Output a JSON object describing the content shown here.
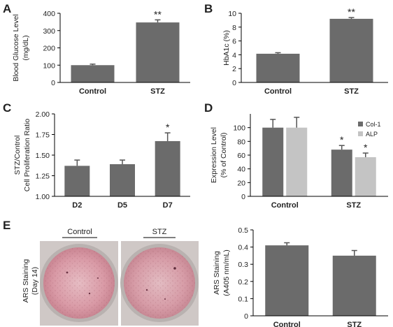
{
  "colors": {
    "bar_dark": "#6b6b6b",
    "bar_light": "#c4c4c4",
    "axis": "#000000",
    "text": "#222222",
    "dish_pink": "#d9a3ad",
    "dish_rim": "#b9b2b0"
  },
  "panels": {
    "e_photo": {
      "letter": "E",
      "ylabel_lines": [
        "ARS Staining",
        "(Day 14)"
      ],
      "labels": [
        "Control",
        "STZ"
      ]
    }
  },
  "chart_data": [
    {
      "id": "A",
      "letter": "A",
      "type": "bar",
      "categories": [
        "Control",
        "STZ"
      ],
      "values": [
        100,
        347
      ],
      "errors": [
        6,
        15
      ],
      "annotations": [
        "",
        "**"
      ],
      "ylabel_lines": [
        "Blood Glucose Level",
        "(mg/dL)"
      ],
      "ylim": [
        0,
        400
      ],
      "yticks": [
        0,
        100,
        200,
        300,
        400
      ],
      "ytick_labels": [
        "0",
        "100",
        "200",
        "300",
        "400"
      ]
    },
    {
      "id": "B",
      "letter": "B",
      "type": "bar",
      "categories": [
        "Control",
        "STZ"
      ],
      "values": [
        4.15,
        9.2
      ],
      "errors": [
        0.15,
        0.18
      ],
      "annotations": [
        "",
        "**"
      ],
      "ylabel_lines": [
        "HbA1c (%)"
      ],
      "ylim": [
        0,
        10
      ],
      "yticks": [
        0,
        2,
        4,
        6,
        8,
        10
      ],
      "ytick_labels": [
        "0",
        "2",
        "4",
        "6",
        "8",
        "10"
      ]
    },
    {
      "id": "C",
      "letter": "C",
      "type": "bar",
      "categories": [
        "D2",
        "D5",
        "D7"
      ],
      "values": [
        1.37,
        1.39,
        1.67
      ],
      "errors": [
        0.07,
        0.05,
        0.1
      ],
      "annotations": [
        "",
        "",
        "*"
      ],
      "ylabel_lines": [
        "STZ/Control",
        "Cell Proliferation Ratio"
      ],
      "ylim": [
        1.0,
        2.0
      ],
      "yticks": [
        1.0,
        1.25,
        1.5,
        1.75,
        2.0
      ],
      "ytick_labels": [
        "1.00",
        "1.25",
        "1.50",
        "1.75",
        "2.00"
      ]
    },
    {
      "id": "D",
      "letter": "D",
      "type": "bar",
      "categories": [
        "Control",
        "STZ"
      ],
      "series": [
        {
          "name": "Col-1",
          "values": [
            100,
            68
          ],
          "errors": [
            12,
            6
          ],
          "annotations": [
            "",
            "*"
          ]
        },
        {
          "name": "ALP",
          "values": [
            100,
            57
          ],
          "errors": [
            15,
            6
          ],
          "annotations": [
            "",
            "*"
          ]
        }
      ],
      "legend": "top-right",
      "ylabel_lines": [
        "Expression Level",
        "(% of Control)"
      ],
      "ylim": [
        0,
        120
      ],
      "yticks": [
        0,
        20,
        40,
        60,
        80,
        100
      ],
      "ytick_labels": [
        "0",
        "20",
        "40",
        "60",
        "80",
        "100"
      ]
    },
    {
      "id": "E",
      "letter": "",
      "type": "bar",
      "categories": [
        "Control",
        "STZ"
      ],
      "values": [
        0.41,
        0.35
      ],
      "errors": [
        0.015,
        0.03
      ],
      "annotations": [
        "",
        ""
      ],
      "ylabel_lines": [
        "ARS Staining",
        "(A405 nm/mL)"
      ],
      "ylim": [
        0,
        0.5
      ],
      "yticks": [
        0,
        0.1,
        0.2,
        0.3,
        0.4,
        0.5
      ],
      "ytick_labels": [
        "0",
        "0.1",
        "0.2",
        "0.3",
        "0.4",
        "0.5"
      ]
    }
  ]
}
